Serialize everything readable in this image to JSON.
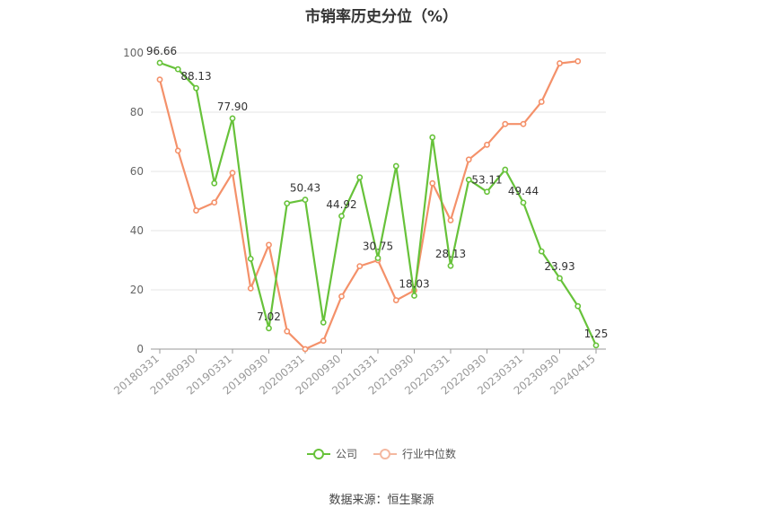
{
  "chart_data": {
    "type": "line",
    "title": "市销率历史分位（%）",
    "source": "数据来源：恒生聚源",
    "ylim": [
      0,
      100
    ],
    "yticks": [
      0,
      20,
      40,
      60,
      80,
      100
    ],
    "grid": true,
    "legend_position": "bottom",
    "x": [
      "20180331",
      "20180630",
      "20180930",
      "20181231",
      "20190331",
      "20190630",
      "20190930",
      "20191231",
      "20200331",
      "20200630",
      "20200930",
      "20201231",
      "20210331",
      "20210630",
      "20210930",
      "20211231",
      "20220331",
      "20220630",
      "20220930",
      "20221231",
      "20230331",
      "20230630",
      "20230930",
      "20231231",
      "20240415"
    ],
    "xtick_labels": [
      "20180331",
      "20180930",
      "20190331",
      "20190930",
      "20200331",
      "20200930",
      "20210331",
      "20210930",
      "20220331",
      "20220930",
      "20230331",
      "20230930",
      "20240415"
    ],
    "series": [
      {
        "name": "公司",
        "color": "#67c23a",
        "values": [
          96.66,
          94.5,
          88.13,
          56.0,
          77.9,
          30.5,
          7.02,
          49.2,
          50.43,
          9.0,
          44.92,
          58.0,
          30.75,
          61.8,
          18.03,
          71.5,
          28.13,
          57.2,
          53.11,
          60.6,
          49.44,
          33.0,
          23.93,
          14.5,
          1.25
        ],
        "labels": {
          "0": "96.66",
          "2": "88.13",
          "4": "77.90",
          "6": "7.02",
          "8": "50.43",
          "10": "44.92",
          "12": "30.75",
          "14": "18.03",
          "16": "28.13",
          "18": "53.11",
          "20": "49.44",
          "22": "23.93",
          "24": "1.25"
        }
      },
      {
        "name": "行业中位数",
        "color": "#f4916a",
        "values": [
          91.0,
          67.0,
          46.8,
          49.5,
          59.5,
          20.5,
          35.2,
          6.0,
          0.0,
          2.8,
          17.8,
          28.0,
          30.0,
          16.5,
          19.8,
          56.0,
          43.5,
          64.0,
          69.0,
          76.0,
          76.0,
          83.5,
          96.5,
          97.2,
          null
        ],
        "labels": {}
      }
    ]
  }
}
